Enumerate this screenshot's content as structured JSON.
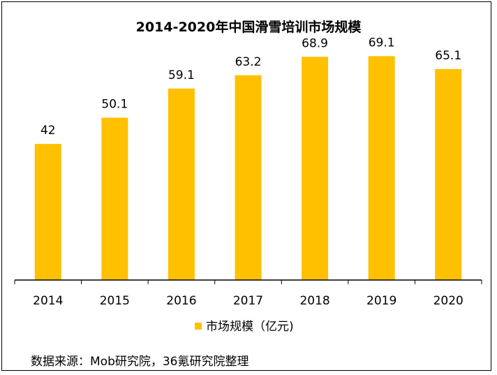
{
  "chart_data": {
    "type": "bar",
    "title": "2014-2020年中国滑雪培训市场规模",
    "categories": [
      "2014",
      "2015",
      "2016",
      "2017",
      "2018",
      "2019",
      "2020"
    ],
    "series": [
      {
        "name": "市场规模（亿元)",
        "values": [
          42,
          50.1,
          59.1,
          63.2,
          68.9,
          69.1,
          65.1
        ]
      }
    ],
    "value_labels": [
      "42",
      "50.1",
      "59.1",
      "63.2",
      "68.9",
      "69.1",
      "65.1"
    ],
    "xlabel": "",
    "ylabel": "",
    "ylim": [
      0,
      80
    ],
    "grid": false,
    "legend_position": "bottom",
    "bar_color": "#FFC000"
  },
  "source": "数据来源：Mob研究院，36氪研究院整理"
}
